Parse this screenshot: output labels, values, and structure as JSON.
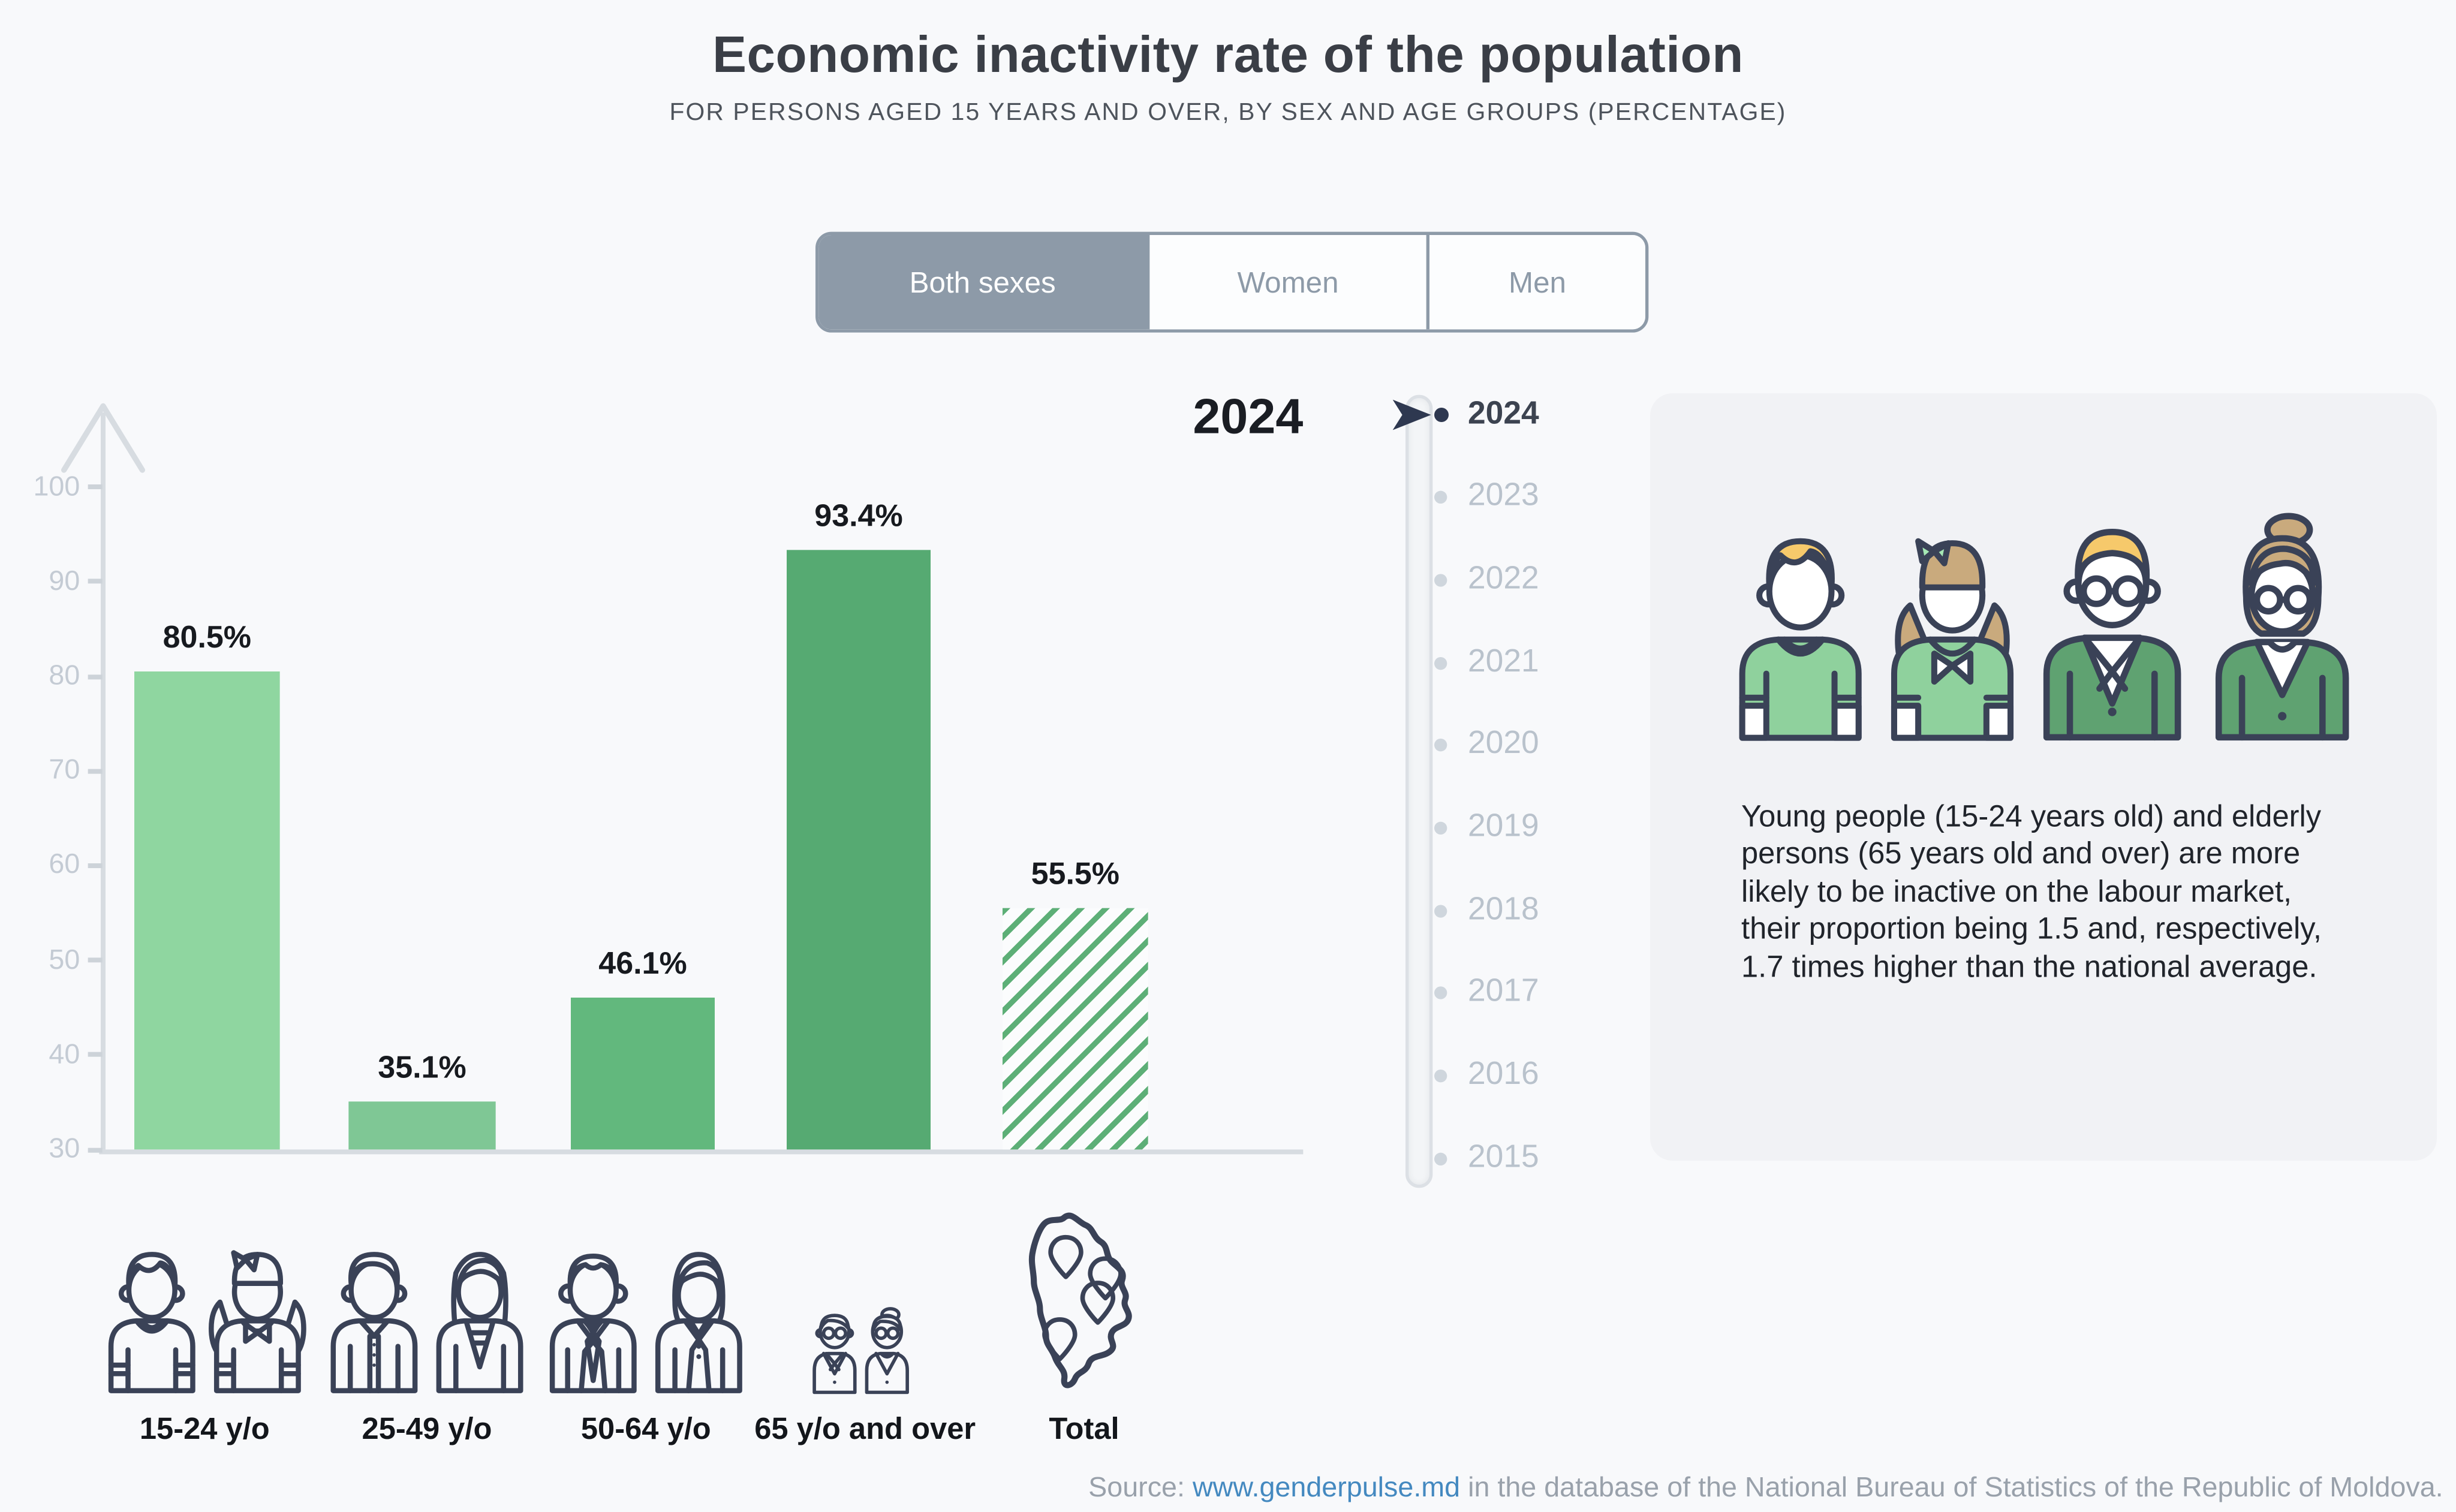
{
  "header": {
    "title": "Economic inactivity rate of the population",
    "subtitle": "FOR PERSONS AGED 15 YEARS AND OVER, BY SEX AND AGE GROUPS (PERCENTAGE)"
  },
  "tabs": {
    "items": [
      {
        "label": "Both sexes",
        "active": true
      },
      {
        "label": "Women",
        "active": false
      },
      {
        "label": "Men",
        "active": false
      }
    ]
  },
  "chart_data": {
    "type": "bar",
    "title": "Economic inactivity rate of the population",
    "year_label": "2024",
    "categories": [
      "15-24 y/o",
      "25-49 y/o",
      "50-64 y/o",
      "65 y/o and over",
      "Total"
    ],
    "values": [
      80.5,
      35.1,
      46.1,
      93.4,
      55.5
    ],
    "value_labels": [
      "80.5%",
      "35.1%",
      "46.1%",
      "93.4%",
      "55.5%"
    ],
    "units": "%",
    "xlabel": "",
    "ylabel": "",
    "ylim": [
      30,
      105
    ],
    "yticks": [
      100,
      90,
      80,
      70,
      60,
      50,
      40,
      30
    ],
    "grid": false,
    "bar_colors": [
      "#8FD6A0",
      "#7FC795",
      "#62B87D",
      "#56AA72",
      "#5DAF77"
    ],
    "hatched": [
      false,
      false,
      false,
      false,
      true
    ]
  },
  "timeline": {
    "active_year": "2024",
    "years": [
      "2024",
      "2023",
      "2022",
      "2021",
      "2020",
      "2019",
      "2018",
      "2017",
      "2016",
      "2015"
    ]
  },
  "infobox": {
    "text": "Young people (15-24 years old) and elderly persons (65 years old and over) are more likely to be inactive on the labour market, their proportion being 1.5 and, respectively, 1.7 times higher than the national average."
  },
  "source": {
    "prefix": "Source: ",
    "link": "www.genderpulse.md",
    "suffix": " in the database of the National Bureau of Statistics of the Republic of Moldova."
  },
  "icons": {
    "categories": [
      "young-pair-icon",
      "adult-pair-icon",
      "senior-pair-icon",
      "elderly-pair-icon",
      "moldova-map-icon"
    ],
    "infobox": [
      "boy-icon",
      "girl-icon",
      "elderly-man-icon",
      "elderly-woman-icon"
    ],
    "timeline_cursor": "arrow-cursor-icon"
  },
  "colors": {
    "background": "#F8F9FB",
    "tab_active": "#8D9AA8",
    "outline_dark": "#3A4257",
    "axis_gray": "#D7DCE1",
    "tick_text": "#C4CBD4",
    "year_inactive": "#B9C2CC",
    "year_active": "#3C4350",
    "link_blue": "#4489C0",
    "infobox_bg": "#F1F2F5"
  }
}
